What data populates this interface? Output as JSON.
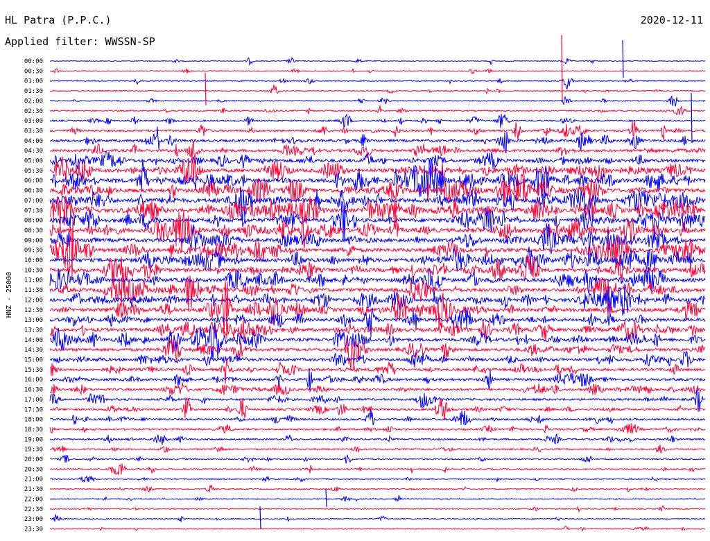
{
  "header": {
    "station": "HL Patra (P.P.C.)",
    "date": "2020-12-11",
    "filter": "Applied filter: WWSSN-SP"
  },
  "chart_data": {
    "type": "line",
    "title": "HL Patra (P.P.C.)",
    "ylabel": "HNZ - 25000",
    "rows": [
      "00:00",
      "00:30",
      "01:00",
      "01:30",
      "02:00",
      "02:30",
      "03:00",
      "03:30",
      "04:00",
      "04:30",
      "05:00",
      "05:30",
      "06:00",
      "06:30",
      "07:00",
      "07:30",
      "08:00",
      "08:30",
      "09:00",
      "09:30",
      "10:00",
      "10:30",
      "11:00",
      "11:30",
      "12:00",
      "12:30",
      "13:00",
      "13:30",
      "14:00",
      "14:30",
      "15:00",
      "15:30",
      "16:00",
      "16:30",
      "17:00",
      "17:30",
      "18:00",
      "18:30",
      "19:00",
      "19:30",
      "20:00",
      "20:30",
      "21:00",
      "21:30",
      "22:00",
      "22:30",
      "23:00",
      "23:30"
    ],
    "row_minutes": 30,
    "series_colors": [
      "#0000ff",
      "#ff0033"
    ],
    "activity": [
      0.05,
      0.05,
      0.08,
      0.08,
      0.1,
      0.18,
      0.25,
      0.4,
      0.55,
      0.6,
      0.75,
      0.9,
      0.95,
      1.0,
      1.0,
      1.0,
      0.95,
      0.95,
      0.9,
      0.9,
      0.9,
      0.9,
      0.85,
      0.85,
      0.85,
      0.85,
      0.8,
      0.8,
      0.75,
      0.7,
      0.65,
      0.6,
      0.55,
      0.5,
      0.45,
      0.4,
      0.38,
      0.35,
      0.3,
      0.25,
      0.2,
      0.18,
      0.15,
      0.12,
      0.1,
      0.08,
      0.08,
      0.08
    ]
  }
}
